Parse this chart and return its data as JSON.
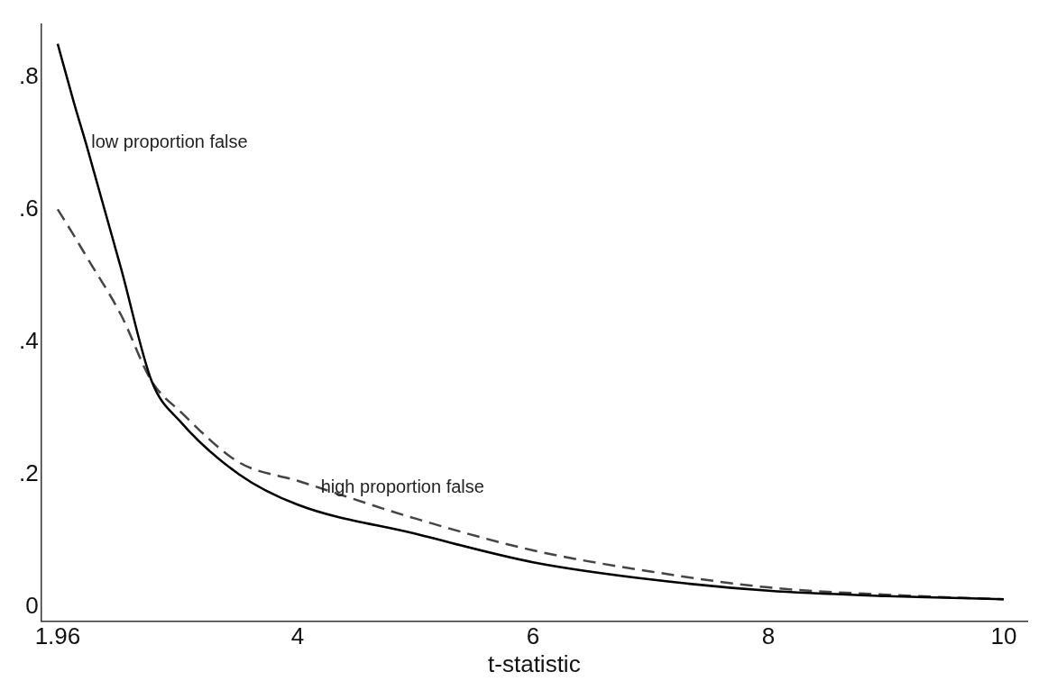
{
  "chart_data": {
    "type": "line",
    "xlabel": "t-statistic",
    "x": [
      1.96,
      2.1,
      2.2,
      2.5,
      2.76,
      3,
      3.5,
      4,
      5,
      6,
      7,
      8,
      9,
      10
    ],
    "series": [
      {
        "color": "#000000",
        "line_style": "solid",
        "values": [
          0.85,
          0.76,
          0.7,
          0.51,
          0.34,
          0.28,
          0.2,
          0.154,
          0.11,
          0.067,
          0.041,
          0.024,
          0.016,
          0.011
        ]
      },
      {
        "color": "#444444",
        "line_style": "dashed",
        "values": [
          0.6,
          0.56,
          0.53,
          0.44,
          0.34,
          0.295,
          0.218,
          0.19,
          0.133,
          0.085,
          0.053,
          0.029,
          0.018,
          0.011
        ]
      }
    ],
    "xlim": [
      1.82,
      10.2
    ],
    "xticks": [
      1.96,
      4,
      6,
      8,
      10
    ],
    "ylim": [
      -0.022,
      0.88
    ],
    "yticks": [
      0,
      {
        "value": 0.2,
        "label": ".2"
      },
      {
        "value": 0.4,
        "label": ".4"
      },
      {
        "value": 0.6,
        "label": ".6"
      },
      {
        "value": 0.8,
        "label": ".8"
      }
    ],
    "annotations": [
      {
        "text": "low proportion false",
        "x": 2.2,
        "y": 0.7
      },
      {
        "text": "high proportion false",
        "x": 4.15,
        "y": 0.18
      }
    ],
    "grid": false,
    "legend": false,
    "marker": "none"
  }
}
